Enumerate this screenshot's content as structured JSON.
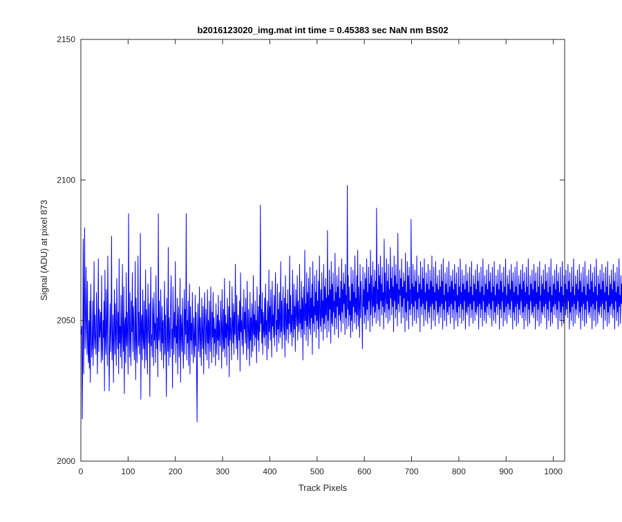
{
  "chart_data": {
    "type": "line",
    "title": "b2016123020_img.mat int time = 0.45383 sec  NaN nm BS02",
    "xlabel": "Track Pixels",
    "ylabel": "Signal (ADU) at pixel 873",
    "xlim": [
      0,
      1024
    ],
    "ylim": [
      2000,
      2150
    ],
    "xticks": [
      "0",
      "100",
      "200",
      "300",
      "400",
      "500",
      "600",
      "700",
      "800",
      "900",
      "1000"
    ],
    "yticks": [
      "2000",
      "2050",
      "2100",
      "2150"
    ],
    "grid": false,
    "legend": false,
    "line_color": "#0000ff",
    "series": [
      {
        "values": [
          2045,
          2048,
          2015,
          2040,
          2079,
          2031,
          2055,
          2083,
          2040,
          2046,
          2069,
          2051,
          2038,
          2064,
          2041,
          2035,
          2050,
          2033,
          2057,
          2028,
          2063,
          2046,
          2037,
          2042,
          2057,
          2034,
          2047,
          2071,
          2040,
          2052,
          2043,
          2038,
          2060,
          2050,
          2031,
          2046,
          2072,
          2039,
          2054,
          2044,
          2048,
          2053,
          2035,
          2066,
          2041,
          2036,
          2050,
          2044,
          2057,
          2025,
          2068,
          2043,
          2038,
          2061,
          2047,
          2034,
          2073,
          2051,
          2041,
          2025,
          2045,
          2056,
          2039,
          2048,
          2080,
          2036,
          2043,
          2052,
          2028,
          2047,
          2061,
          2038,
          2056,
          2045,
          2034,
          2065,
          2049,
          2040,
          2053,
          2031,
          2072,
          2042,
          2048,
          2037,
          2059,
          2044,
          2033,
          2070,
          2046,
          2039,
          2062,
          2024,
          2048,
          2051,
          2035,
          2067,
          2041,
          2053,
          2045,
          2031,
          2088,
          2049,
          2037,
          2060,
          2042,
          2034,
          2057,
          2046,
          2067,
          2039,
          2055,
          2050,
          2036,
          2044,
          2071,
          2029,
          2058,
          2043,
          2035,
          2049,
          2073,
          2041,
          2053,
          2038,
          2046,
          2081,
          2022,
          2049,
          2052,
          2036,
          2061,
          2044,
          2040,
          2057,
          2033,
          2045,
          2068,
          2036,
          2054,
          2047,
          2031,
          2063,
          2050,
          2042,
          2056,
          2023,
          2048,
          2069,
          2041,
          2045,
          2037,
          2058,
          2052,
          2034,
          2060,
          2043,
          2049,
          2035,
          2066,
          2046,
          2040,
          2051,
          2030,
          2088,
          2043,
          2057,
          2045,
          2039,
          2061,
          2048,
          2036,
          2055,
          2042,
          2050,
          2033,
          2047,
          2064,
          2038,
          2052,
          2041,
          2023,
          2058,
          2046,
          2039,
          2076,
          2034,
          2051,
          2045,
          2037,
          2055,
          2066,
          2040,
          2047,
          2026,
          2062,
          2049,
          2038,
          2053,
          2044,
          2071,
          2035,
          2048,
          2042,
          2058,
          2031,
          2050,
          2055,
          2037,
          2044,
          2065,
          2028,
          2052,
          2047,
          2039,
          2058,
          2042,
          2033,
          2049,
          2061,
          2038,
          2054,
          2045,
          2088,
          2036,
          2050,
          2042,
          2057,
          2034,
          2047,
          2063,
          2031,
          2055,
          2043,
          2049,
          2038,
          2060,
          2046,
          2035,
          2051,
          2044,
          2037,
          2059,
          2041,
          2053,
          2032,
          2014,
          2048,
          2056,
          2039,
          2045,
          2062,
          2037,
          2051,
          2043,
          2034,
          2058,
          2046,
          2040,
          2055,
          2031,
          2049,
          2060,
          2043,
          2038,
          2054,
          2047,
          2036,
          2061,
          2042,
          2050,
          2033,
          2057,
          2045,
          2039,
          2062,
          2048,
          2035,
          2053,
          2044,
          2060,
          2037,
          2051,
          2042,
          2047,
          2034,
          2056,
          2046,
          2038,
          2052,
          2043,
          2059,
          2036,
          2050,
          2045,
          2041,
          2057,
          2048,
          2033,
          2061,
          2046,
          2039,
          2054,
          2040,
          2065,
          2037,
          2052,
          2044,
          2049,
          2034,
          2058,
          2047,
          2041,
          2055,
          2030,
          2064,
          2043,
          2051,
          2046,
          2036,
          2062,
          2049,
          2042,
          2056,
          2038,
          2053,
          2045,
          2070,
          2047,
          2040,
          2059,
          2044,
          2036,
          2052,
          2048,
          2043,
          2057,
          2032,
          2067,
          2046,
          2050,
          2041,
          2055,
          2044,
          2038,
          2061,
          2047,
          2053,
          2042,
          2058,
          2045,
          2036,
          2064,
          2049,
          2040,
          2054,
          2046,
          2034,
          2060,
          2043,
          2051,
          2037,
          2056,
          2048,
          2039,
          2066,
          2045,
          2052,
          2041,
          2057,
          2044,
          2050,
          2035,
          2062,
          2047,
          2043,
          2055,
          2039,
          2059,
          2046,
          2091,
          2049,
          2054,
          2042,
          2060,
          2038,
          2053,
          2047,
          2044,
          2058,
          2041,
          2063,
          2045,
          2050,
          2036,
          2057,
          2052,
          2040,
          2068,
          2046,
          2055,
          2043,
          2061,
          2049,
          2037,
          2064,
          2048,
          2052,
          2044,
          2059,
          2041,
          2056,
          2067,
          2045,
          2050,
          2039,
          2063,
          2047,
          2054,
          2042,
          2060,
          2049,
          2044,
          2071,
          2046,
          2057,
          2040,
          2053,
          2062,
          2048,
          2045,
          2058,
          2037,
          2066,
          2051,
          2043,
          2056,
          2047,
          2061,
          2042,
          2054,
          2049,
          2073,
          2045,
          2059,
          2046,
          2052,
          2041,
          2068,
          2050,
          2044,
          2063,
          2047,
          2055,
          2039,
          2061,
          2053,
          2048,
          2066,
          2043,
          2057,
          2051,
          2046,
          2070,
          2049,
          2054,
          2044,
          2064,
          2047,
          2058,
          2036,
          2062,
          2052,
          2045,
          2075,
          2050,
          2056,
          2043,
          2067,
          2048,
          2060,
          2041,
          2065,
          2053,
          2047,
          2069,
          2045,
          2058,
          2051,
          2063,
          2038,
          2071,
          2049,
          2055,
          2046,
          2066,
          2052,
          2060,
          2044,
          2068,
          2050,
          2057,
          2047,
          2064,
          2040,
          2073,
          2053,
          2048,
          2061,
          2046,
          2067,
          2051,
          2057,
          2043,
          2070,
          2049,
          2062,
          2047,
          2065,
          2052,
          2058,
          2044,
          2082,
          2050,
          2059,
          2046,
          2068,
          2054,
          2061,
          2042,
          2071,
          2049,
          2063,
          2048,
          2067,
          2053,
          2057,
          2045,
          2074,
          2051,
          2060,
          2047,
          2066,
          2055,
          2062,
          2044,
          2069,
          2052,
          2058,
          2050,
          2064,
          2046,
          2072,
          2053,
          2061,
          2049,
          2067,
          2056,
          2063,
          2045,
          2070,
          2051,
          2059,
          2047,
          2098,
          2054,
          2066,
          2048,
          2062,
          2052,
          2057,
          2044,
          2069,
          2050,
          2063,
          2046,
          2068,
          2055,
          2060,
          2049,
          2073,
          2053,
          2058,
          2047,
          2066,
          2052,
          2075,
          2048,
          2062,
          2056,
          2044,
          2070,
          2051,
          2064,
          2058,
          2053,
          2040,
          2069,
          2055,
          2061,
          2049,
          2067,
          2052,
          2065,
          2047,
          2072,
          2054,
          2060,
          2050,
          2069,
          2057,
          2063,
          2046,
          2075,
          2052,
          2066,
          2058,
          2048,
          2071,
          2055,
          2062,
          2051,
          2068,
          2053,
          2064,
          2049,
          2090,
          2056,
          2061,
          2050,
          2070,
          2054,
          2066,
          2048,
          2073,
          2057,
          2063,
          2052,
          2069,
          2055,
          2060,
          2047,
          2079,
          2053,
          2067,
          2058,
          2051,
          2072,
          2056,
          2064,
          2049,
          2070,
          2054,
          2061,
          2050,
          2076,
          2058,
          2065,
          2052,
          2069,
          2055,
          2062,
          2046,
          2073,
          2057,
          2066,
          2051,
          2070,
          2054,
          2063,
          2048,
          2081,
          2056,
          2061,
          2053,
          2068,
          2059,
          2065,
          2049,
          2072,
          2055,
          2062,
          2051,
          2067,
          2058,
          2064,
          2046,
          2074,
          2053,
          2060,
          2050,
          2071,
          2057,
          2066,
          2047,
          2069,
          2054,
          2061,
          2052,
          2086,
          2056,
          2063,
          2048,
          2070,
          2055,
          2062,
          2050,
          2068,
          2057,
          2064,
          2049,
          2073,
          2054,
          2060,
          2051,
          2066,
          2058,
          2063,
          2046,
          2071,
          2055,
          2061,
          2052,
          2069,
          2056,
          2065,
          2048,
          2072,
          2054,
          2060,
          2050,
          2067,
          2057,
          2063,
          2049,
          2070,
          2053,
          2061,
          2051,
          2068,
          2055,
          2064,
          2047,
          2073,
          2056,
          2062,
          2050,
          2069,
          2054,
          2060,
          2048,
          2071,
          2057,
          2063,
          2052,
          2066,
          2053,
          2061,
          2049,
          2068,
          2055,
          2062,
          2051,
          2070,
          2056,
          2064,
          2047,
          2072,
          2054,
          2059,
          2050,
          2067,
          2057,
          2063,
          2048,
          2069,
          2053,
          2060,
          2052,
          2071,
          2055,
          2062,
          2049,
          2066,
          2056,
          2064,
          2051,
          2068,
          2054,
          2061,
          2047,
          2070,
          2057,
          2063,
          2050,
          2067,
          2053,
          2059,
          2048,
          2069,
          2055,
          2062,
          2051,
          2072,
          2056,
          2060,
          2049,
          2068,
          2054,
          2063,
          2050,
          2066,
          2057,
          2061,
          2047,
          2070,
          2053,
          2064,
          2052,
          2067,
          2055,
          2060,
          2048,
          2069,
          2056,
          2062,
          2051,
          2071,
          2054,
          2059,
          2049,
          2066,
          2057,
          2063,
          2050,
          2068,
          2053,
          2061,
          2052,
          2070,
          2055,
          2064,
          2047,
          2067,
          2056,
          2060,
          2051,
          2069,
          2054,
          2062,
          2048,
          2072,
          2057,
          2059,
          2050,
          2066,
          2053,
          2063,
          2049,
          2068,
          2055,
          2061,
          2052,
          2070,
          2056,
          2064,
          2051,
          2067,
          2054,
          2060,
          2048,
          2069,
          2057,
          2062,
          2050,
          2071,
          2053,
          2059,
          2049,
          2066,
          2055,
          2063,
          2052,
          2068,
          2056,
          2061,
          2047,
          2070,
          2054,
          2064,
          2051,
          2067,
          2057,
          2060,
          2048,
          2069,
          2053,
          2062,
          2050,
          2072,
          2055,
          2059,
          2049,
          2066,
          2056,
          2063,
          2052,
          2068,
          2054,
          2061,
          2051,
          2070,
          2057,
          2064,
          2047,
          2067,
          2053,
          2060,
          2050,
          2069,
          2055,
          2062,
          2048,
          2071,
          2056,
          2059,
          2049,
          2066,
          2054,
          2063,
          2052,
          2068,
          2057,
          2061,
          2051,
          2070,
          2053,
          2064,
          2047,
          2067,
          2055,
          2060,
          2050,
          2069,
          2056,
          2062,
          2048,
          2072,
          2054,
          2059,
          2049,
          2066,
          2057,
          2063,
          2052,
          2068,
          2053,
          2061,
          2051,
          2070,
          2055,
          2064,
          2047,
          2067,
          2056,
          2060,
          2050,
          2069,
          2054,
          2062,
          2048,
          2071,
          2057,
          2059,
          2049,
          2066,
          2053,
          2063,
          2052,
          2068,
          2055,
          2061,
          2051,
          2070,
          2056,
          2064,
          2047,
          2067,
          2054,
          2060,
          2050,
          2069,
          2057,
          2062,
          2048,
          2072,
          2053,
          2059,
          2049,
          2066,
          2055,
          2063,
          2052,
          2068,
          2056,
          2061,
          2051,
          2070,
          2054,
          2064,
          2047,
          2067,
          2057,
          2060,
          2050,
          2069,
          2053,
          2062,
          2048,
          2071,
          2055,
          2059,
          2049,
          2066,
          2056,
          2063,
          2052,
          2068,
          2054,
          2061,
          2051,
          2070,
          2057,
          2064,
          2047,
          2067,
          2053,
          2060,
          2050,
          2069,
          2055,
          2062,
          2048,
          2072,
          2056,
          2059,
          2049,
          2066,
          2054,
          2063,
          2052,
          2068,
          2057,
          2061,
          2051,
          2070,
          2053,
          2064,
          2047,
          2067,
          2055,
          2060,
          2050,
          2069,
          2056,
          2062,
          2048,
          2071,
          2054,
          2059,
          2049,
          2066,
          2057,
          2063,
          2052,
          2068,
          2053,
          2061,
          2051,
          2070,
          2055,
          2064,
          2047,
          2067,
          2056,
          2060,
          2050,
          2069,
          2054,
          2062,
          2048,
          2072,
          2057,
          2059,
          2049,
          2066,
          2053,
          2063,
          2052,
          2068,
          2055,
          2061,
          2051,
          2070,
          2056,
          2064,
          2047,
          2067,
          2054,
          2060,
          2050,
          2069,
          2057,
          2062,
          2048,
          2071,
          2053,
          2059,
          2049,
          2066,
          2055,
          2063,
          2052,
          2068,
          2056,
          2061,
          2051,
          2070,
          2054,
          2064,
          2047,
          2067,
          2057,
          2060,
          2050,
          2069,
          2053,
          2062,
          2048,
          2072,
          2055,
          2059,
          2049,
          2066,
          2056,
          2063,
          2052,
          2068,
          2054,
          2061,
          2051,
          2070,
          2057,
          2064,
          2047,
          2067,
          2053,
          2060,
          2050,
          2069,
          2055,
          2062,
          2048,
          2071,
          2056,
          2059,
          2049,
          2066,
          2054,
          2063,
          2052,
          2068,
          2057,
          2061,
          2051,
          2070,
          2053,
          2064,
          2047,
          2067,
          2055,
          2060,
          2050,
          2069,
          2056,
          2062,
          2048,
          2072
        ]
      }
    ]
  }
}
